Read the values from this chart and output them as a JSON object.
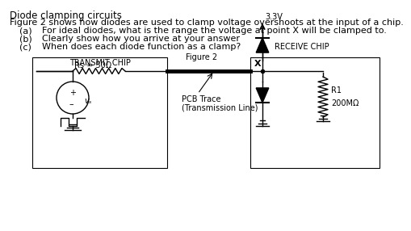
{
  "title_line1": "Diode clamping circuits",
  "title_line2": "Figure 2 shows how diodes are used to clamp voltage overshoots at the input of a chip.",
  "item_a": "For ideal diodes, what is the range the voltage at point X will be clamped to.",
  "item_b": "Clearly show how you arrive at your answer",
  "item_c": "When does each diode function as a clamp?",
  "label_a": "(a)",
  "label_b": "(b)",
  "label_c": "(c)",
  "receive_chip_label": "RECEIVE CHIP",
  "transmit_chip_label": "TRANSMIT CHIP",
  "figure2_label": "Figure 2",
  "rs_label": "Rs = 50Ω",
  "vs_label": "vₛ",
  "voltage_label": "3.3V",
  "x_label": "X",
  "pcb_label1": "PCB Trace",
  "pcb_label2": "(Transmission Line)",
  "r1_label": "R1",
  "r1_value": "200MΩ",
  "bg_color": "#ffffff",
  "text_color": "#000000",
  "font_size_title": 8.5,
  "font_size_body": 8.0,
  "font_size_small": 7.0
}
